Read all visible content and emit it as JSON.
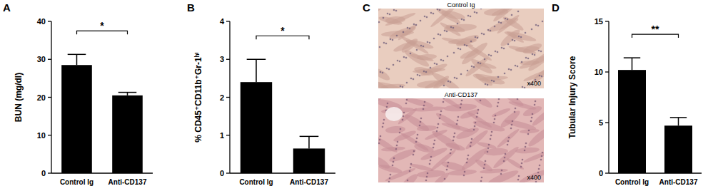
{
  "chart_data": [
    {
      "type": "bar",
      "title": "A",
      "ylabel": "BUN (mg/dl)",
      "categories": [
        "Control Ig",
        "Anti-CD137"
      ],
      "values": [
        28.5,
        20.5
      ],
      "errors": [
        2.8,
        0.8
      ],
      "color": "#000000",
      "ylim": [
        0,
        40
      ],
      "yticks": [
        0,
        10,
        20,
        30,
        40
      ],
      "annotations": [
        "*"
      ]
    },
    {
      "type": "bar",
      "title": "B",
      "ylabel": "% CD45⁺CD11b⁺Gr-1ʰⁱ",
      "categories": [
        "Control Ig",
        "Anti-CD137"
      ],
      "values": [
        2.4,
        0.65
      ],
      "errors": [
        0.6,
        0.32
      ],
      "color": "#000000",
      "ylim": [
        0,
        4
      ],
      "yticks": [
        0,
        1,
        2,
        3,
        4
      ],
      "annotations": [
        "*"
      ]
    },
    {
      "type": "image",
      "title": "C",
      "panels": [
        {
          "title": "Control Ig",
          "magnification": "x400"
        },
        {
          "title": "Anti-CD137",
          "magnification": "x400"
        }
      ]
    },
    {
      "type": "bar",
      "title": "D",
      "ylabel": "Tubular Injury Score",
      "categories": [
        "Control Ig",
        "Anti-CD137"
      ],
      "values": [
        10.2,
        4.7
      ],
      "errors": [
        1.2,
        0.8
      ],
      "color": "#000000",
      "ylim": [
        0,
        15
      ],
      "yticks": [
        0,
        5,
        10,
        15
      ],
      "annotations": [
        "**"
      ]
    }
  ]
}
